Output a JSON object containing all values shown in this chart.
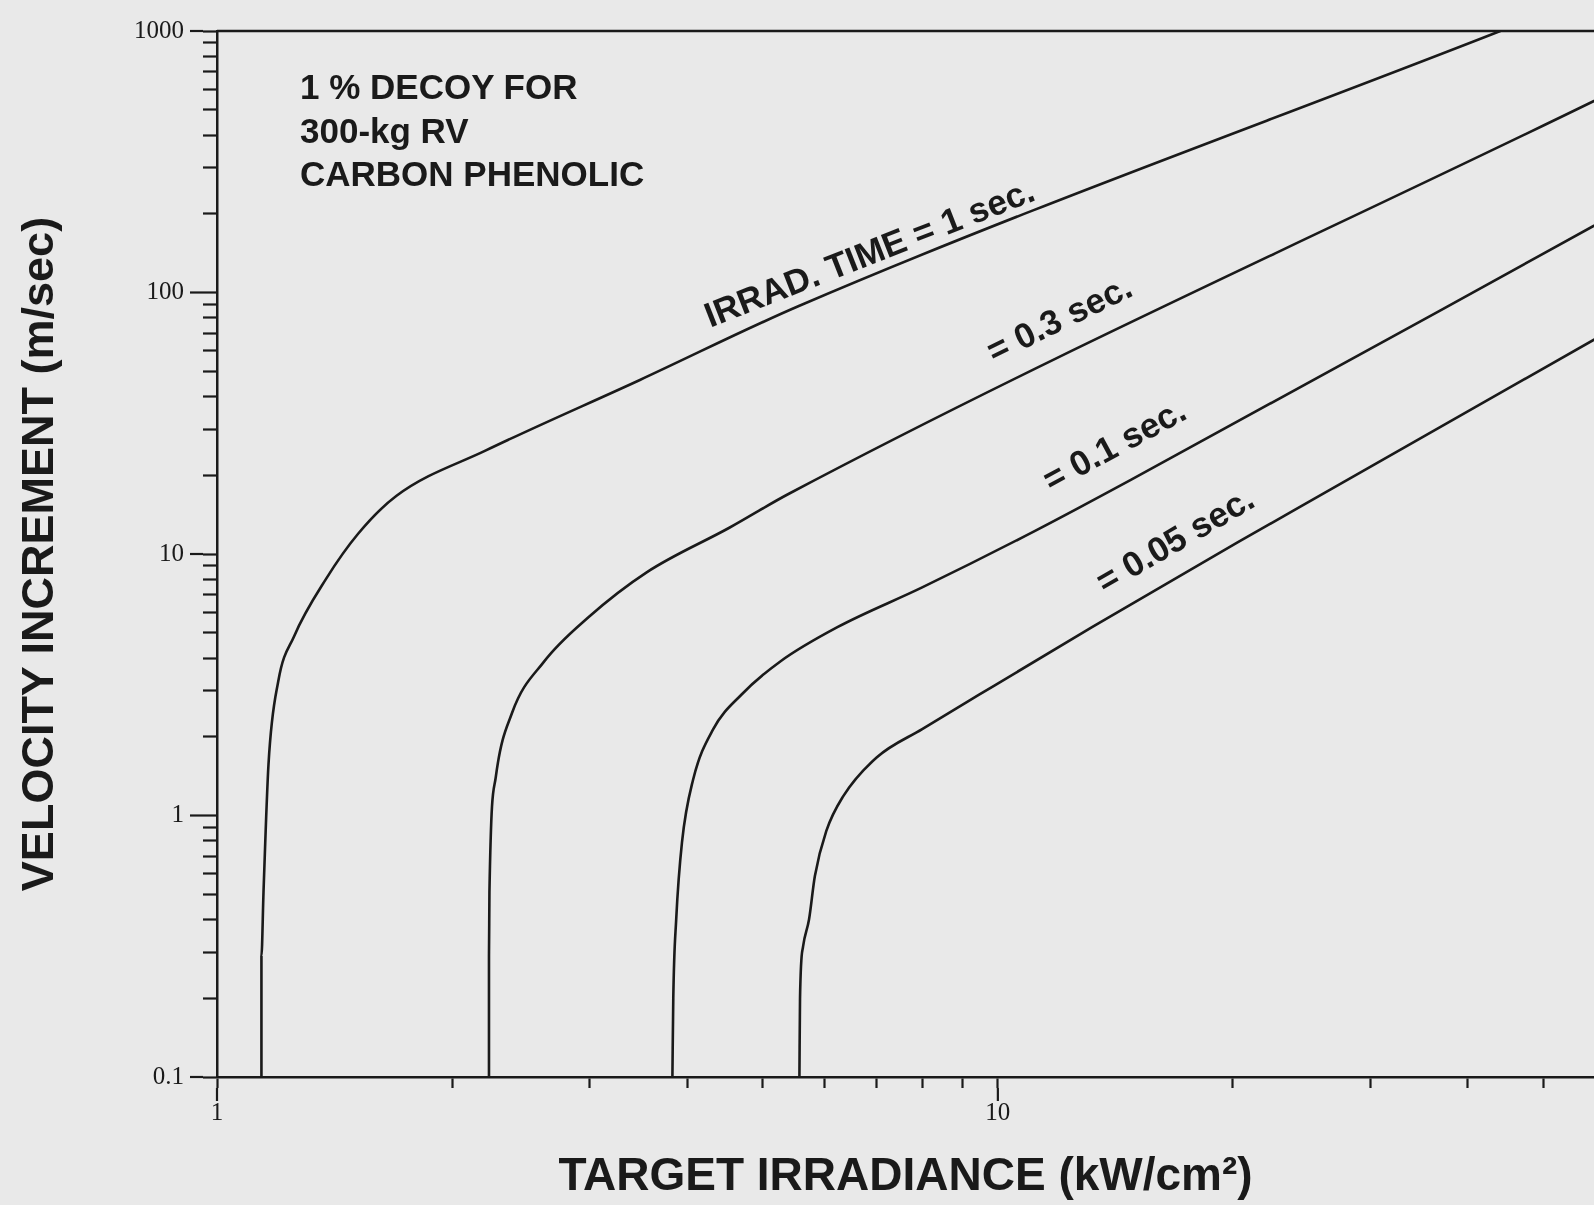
{
  "chart_data": {
    "type": "line",
    "xlabel": "TARGET IRRADIANCE (kW/cm²)",
    "ylabel": "VELOCITY INCREMENT (m/sec)",
    "log": "xy",
    "grid": false,
    "legend": false,
    "marker": "none",
    "line_style": "solid",
    "xlim": [
      1,
      58
    ],
    "ylim": [
      0.1,
      1000
    ],
    "xticks": [
      1,
      {
        "value": 2,
        "label": null
      },
      {
        "value": 3,
        "label": null
      },
      {
        "value": 4,
        "label": null
      },
      {
        "value": 5,
        "label": null
      },
      {
        "value": 6,
        "label": null
      },
      {
        "value": 7,
        "label": null
      },
      {
        "value": 8,
        "label": null
      },
      {
        "value": 9,
        "label": null
      },
      10,
      {
        "value": 20,
        "label": null
      },
      {
        "value": 30,
        "label": null
      },
      {
        "value": 40,
        "label": null
      },
      {
        "value": 50,
        "label": null
      }
    ],
    "yticks": [
      0.1,
      {
        "value": 0.2,
        "label": null
      },
      {
        "value": 0.3,
        "label": null
      },
      {
        "value": 0.4,
        "label": null
      },
      {
        "value": 0.5,
        "label": null
      },
      {
        "value": 0.6,
        "label": null
      },
      {
        "value": 0.7,
        "label": null
      },
      {
        "value": 0.8,
        "label": null
      },
      {
        "value": 0.9,
        "label": null
      },
      1,
      {
        "value": 2,
        "label": null
      },
      {
        "value": 3,
        "label": null
      },
      {
        "value": 4,
        "label": null
      },
      {
        "value": 5,
        "label": null
      },
      {
        "value": 6,
        "label": null
      },
      {
        "value": 7,
        "label": null
      },
      {
        "value": 8,
        "label": null
      },
      {
        "value": 9,
        "label": null
      },
      10,
      {
        "value": 20,
        "label": null
      },
      {
        "value": 30,
        "label": null
      },
      {
        "value": 40,
        "label": null
      },
      {
        "value": 50,
        "label": null
      },
      {
        "value": 60,
        "label": null
      },
      {
        "value": 70,
        "label": null
      },
      {
        "value": 80,
        "label": null
      },
      {
        "value": 90,
        "label": null
      },
      100,
      {
        "value": 200,
        "label": null
      },
      {
        "value": 300,
        "label": null
      },
      {
        "value": 400,
        "label": null
      },
      {
        "value": 500,
        "label": null
      },
      {
        "value": 600,
        "label": null
      },
      {
        "value": 700,
        "label": null
      },
      {
        "value": 800,
        "label": null
      },
      {
        "value": 900,
        "label": null
      },
      1000
    ],
    "annotations": [
      "1 % DECOY FOR\n300-kg RV\nCARBON PHENOLIC"
    ],
    "series": [
      {
        "name": "IRRAD. TIME = 1 sec.",
        "color": "#1a1a1a",
        "x": [
          1.14,
          1.14,
          1.147,
          1.164,
          1.198,
          1.255,
          1.38,
          1.516,
          1.698,
          2.21,
          3.48,
          5.57,
          44
        ],
        "values": [
          0.1,
          0.29,
          0.51,
          1.57,
          3.26,
          4.84,
          8.05,
          11.95,
          16.7,
          24.9,
          46.3,
          89,
          1000
        ]
      },
      {
        "name": "= 0.3 sec.",
        "color": "#1a1a1a",
        "x": [
          2.23,
          2.23,
          2.233,
          2.275,
          2.386,
          2.62,
          2.99,
          3.55,
          4.53,
          5.4,
          58
        ],
        "values": [
          0.1,
          0.29,
          0.51,
          1.4,
          2.46,
          3.86,
          5.73,
          8.51,
          12.6,
          17,
          540
        ]
      },
      {
        "name": "= 0.1 sec.",
        "color": "#1a1a1a",
        "x": [
          3.83,
          3.84,
          3.873,
          3.94,
          4.07,
          4.32,
          4.69,
          5.27,
          6.23,
          8.0,
          11.16,
          14.8,
          58
        ],
        "values": [
          0.1,
          0.2,
          0.4,
          0.791,
          1.367,
          2.14,
          2.89,
          3.89,
          5.25,
          7.45,
          12.26,
          19.2,
          180
        ]
      },
      {
        "name": "= 0.05 sec.",
        "color": "#1a1a1a",
        "x": [
          5.57,
          5.58,
          5.63,
          5.73,
          5.83,
          6.03,
          6.33,
          7.0,
          8.0,
          9.45,
          13.2,
          20.3,
          58
        ],
        "values": [
          0.1,
          0.2,
          0.315,
          0.4,
          0.587,
          0.873,
          1.178,
          1.67,
          2.14,
          2.89,
          5.25,
          11.1,
          66
        ]
      }
    ]
  }
}
